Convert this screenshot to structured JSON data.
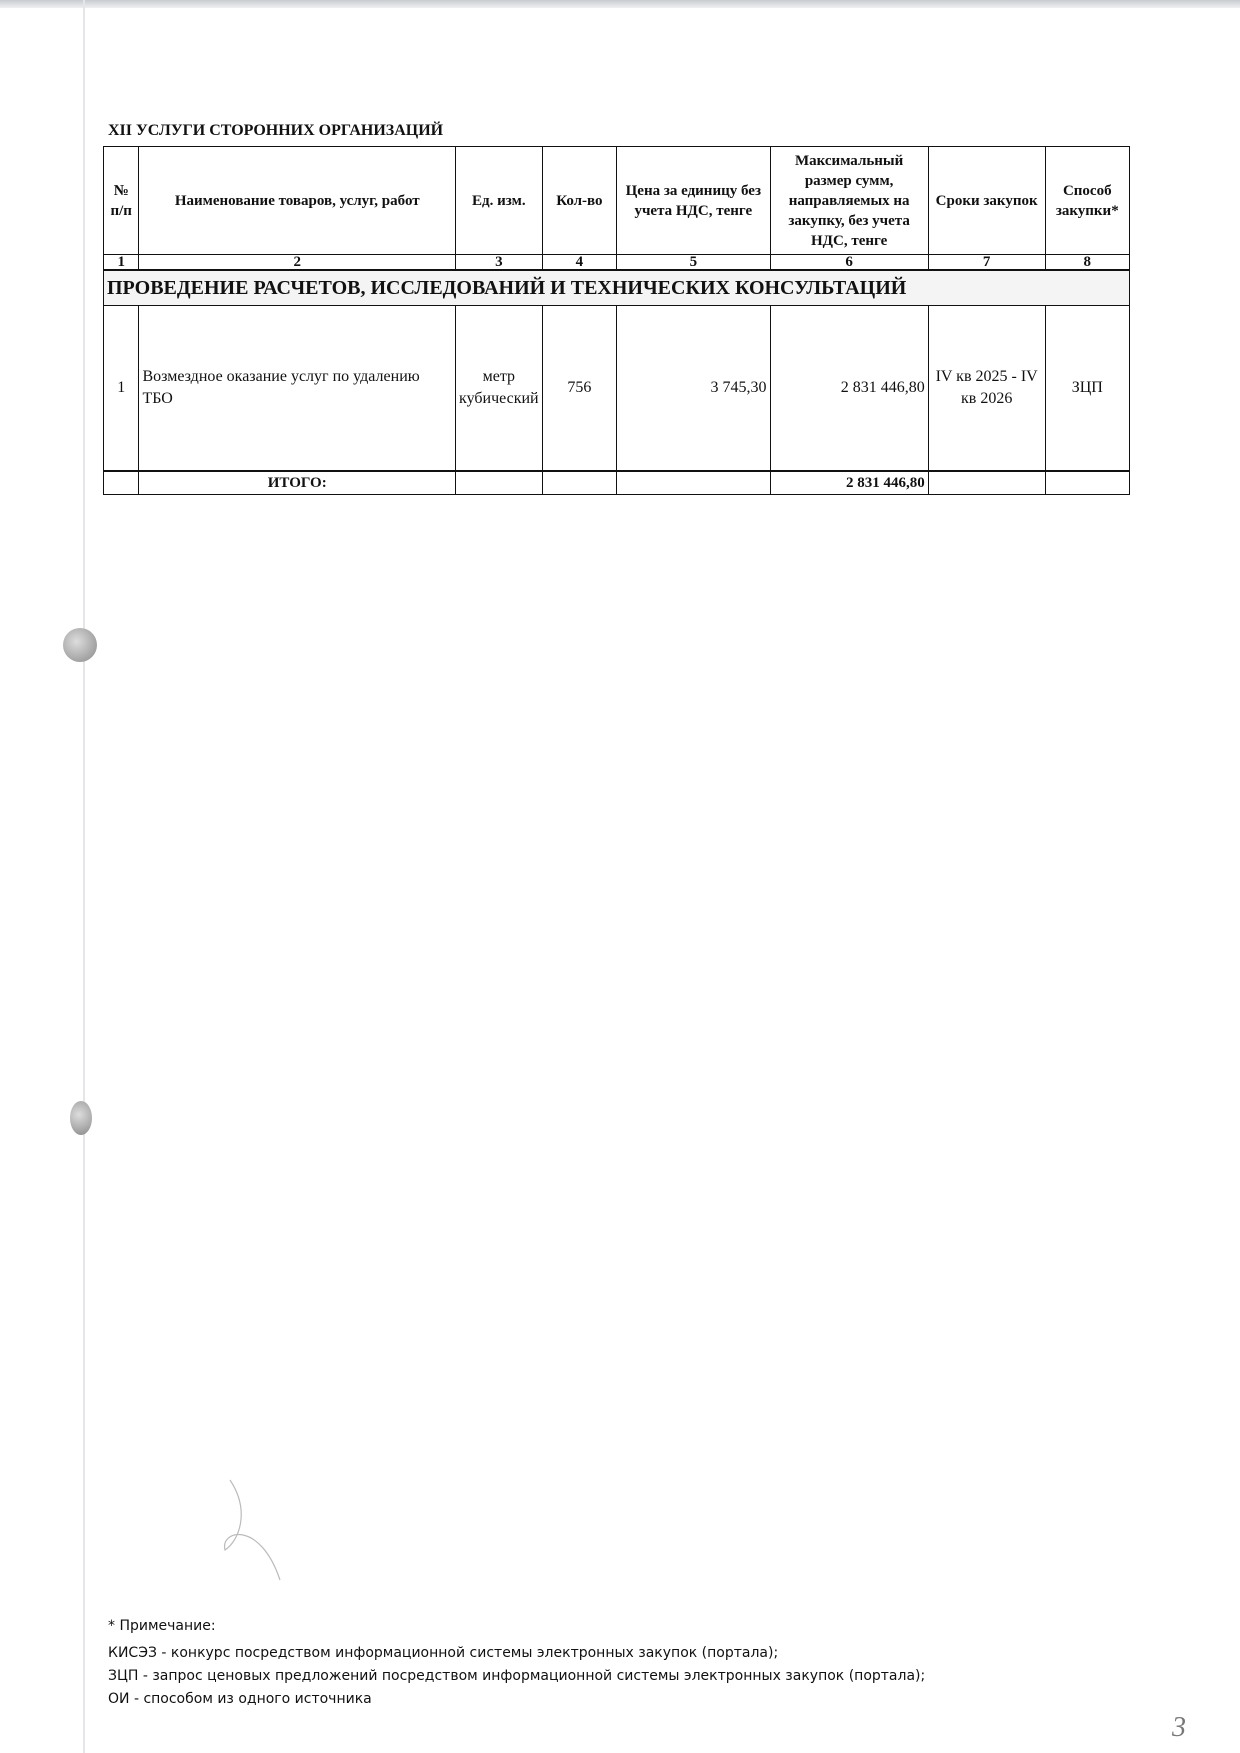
{
  "section_title": "XII  УСЛУГИ СТОРОННИХ ОРГАНИЗАЦИЙ",
  "table": {
    "headers": [
      "№ п/п",
      "Наименование товаров, услуг, работ",
      "Ед. изм.",
      "Кол-во",
      "Цена за единицу без учета НДС, тенге",
      "Максимальный размер сумм, направляемых на закупку, без учета НДС, тенге",
      "Сроки закупок",
      "Способ закупки*"
    ],
    "column_numbers": [
      "1",
      "2",
      "3",
      "4",
      "5",
      "6",
      "7",
      "8"
    ],
    "category": "ПРОВЕДЕНИЕ РАСЧЕТОВ, ИССЛЕДОВАНИЙ И ТЕХНИЧЕСКИХ КОНСУЛЬТАЦИЙ",
    "rows": [
      {
        "num": "1",
        "name": "Возмездное оказание услуг по удалению ТБО",
        "unit": "метр кубический",
        "qty": "756",
        "price": "3 745,30",
        "max_sum": "2 831 446,80",
        "period": "IV кв 2025 - IV кв 2026",
        "method": "ЗЦП"
      }
    ],
    "total_label": "ИТОГО:",
    "total_value": "2 831 446,80"
  },
  "notes": [
    "* Примечание:",
    "КИСЭЗ - конкурс посредством информационной системы электронных закупок (портала);",
    "ЗЦП - запрос ценовых предложений посредством информационной системы электронных закупок (портала);",
    "ОИ - способом из одного источника"
  ],
  "page_number": "3"
}
